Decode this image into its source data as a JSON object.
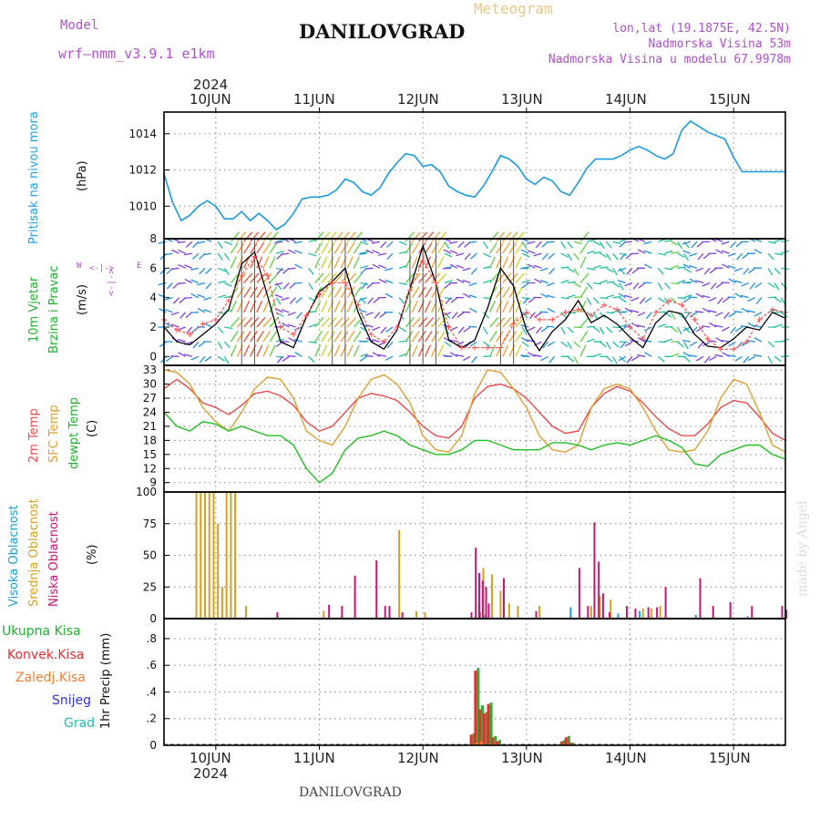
{
  "header": {
    "model_label": "Model",
    "model_name": "wrf—nmm_v3.9.1  e1km",
    "station": "DANILOVGRAD",
    "product": "Meteogram",
    "lonlat": "lon,lat (19.1875E, 42.5N)",
    "elevation": "Nadmorska Visina 53m",
    "model_elevation": "Nadmorska Visina u modelu 67.9978m"
  },
  "footer": {
    "station": "DANILOVGRAD",
    "credit": "made by Angel"
  },
  "time_axis": {
    "year": "2024",
    "days": [
      "10JUN",
      "11JUN",
      "12JUN",
      "13JUN",
      "14JUN",
      "15JUN"
    ],
    "range_hours": [
      -12,
      132
    ]
  },
  "colors": {
    "pressure": "#1a9be0",
    "t2m": "#e84c4c",
    "sfc": "#e0a030",
    "dew": "#22c022",
    "cloud_high": "#1aa0d8",
    "cloud_mid": "#d8a020",
    "cloud_low": "#c0187a",
    "precip_total": "#33aa33",
    "precip_conv": "#e03030",
    "precip_strat": "#f08030",
    "precip_snow": "#3333dd",
    "precip_hail": "#22bbbb"
  },
  "labels": {
    "pressure": [
      "Pritisak na nivou mora",
      "(hPa)"
    ],
    "wind": [
      "10m Vjetar",
      "Brzina i Pravac",
      "(m/s)"
    ],
    "compass": {
      "n": "N",
      "s": "S",
      "e": "E",
      "w": "W",
      "arrows": "<-|->"
    },
    "temp": [
      "2m Temp",
      "SFC Temp",
      "dewpt Temp",
      "(C)"
    ],
    "cloud": [
      "Visoka Oblacnost",
      "Srednja Oblacnost",
      "Niska Oblacnost",
      "(%)"
    ],
    "precip_legend": [
      "Ukupna Kisa",
      "Konvek.Kisa",
      "Zaledj.Kisa",
      "Snijeg",
      "Grad"
    ],
    "precip_axis": "1hr Precip (mm)"
  },
  "chart_data": [
    {
      "type": "line",
      "name": "pressure",
      "ylim": [
        1008.2,
        1015.2
      ],
      "yticks": [
        1010,
        1012,
        1014
      ],
      "x": [
        -12,
        -10,
        -8,
        -6,
        -4,
        -2,
        0,
        2,
        4,
        6,
        8,
        10,
        12,
        14,
        16,
        18,
        20,
        22,
        24,
        26,
        28,
        30,
        32,
        34,
        36,
        38,
        40,
        42,
        44,
        46,
        48,
        50,
        52,
        54,
        56,
        58,
        60,
        62,
        64,
        66,
        68,
        70,
        72,
        74,
        76,
        78,
        80,
        82,
        84,
        86,
        88,
        90,
        92,
        94,
        96,
        98,
        100,
        102,
        104,
        106,
        108,
        110,
        112,
        114,
        116,
        118,
        120,
        122,
        124,
        126,
        128,
        130,
        132
      ],
      "values": [
        1011.8,
        1010.2,
        1009.2,
        1009.5,
        1010.0,
        1010.3,
        1010.0,
        1009.3,
        1009.3,
        1009.7,
        1009.2,
        1009.6,
        1009.2,
        1008.7,
        1009.0,
        1009.6,
        1010.4,
        1010.5,
        1010.5,
        1010.6,
        1010.9,
        1011.5,
        1011.3,
        1010.8,
        1010.6,
        1011.0,
        1011.8,
        1012.4,
        1012.9,
        1012.8,
        1012.2,
        1012.3,
        1011.9,
        1011.1,
        1010.8,
        1010.6,
        1010.5,
        1011.1,
        1011.9,
        1012.8,
        1012.6,
        1012.2,
        1011.5,
        1011.2,
        1011.6,
        1011.4,
        1010.8,
        1010.6,
        1011.3,
        1012.1,
        1012.6,
        1012.6,
        1012.6,
        1012.8,
        1013.1,
        1013.3,
        1013.1,
        1012.8,
        1012.6,
        1012.9,
        1014.2,
        1014.7,
        1014.4,
        1014.1,
        1013.9,
        1013.7,
        1012.7,
        1011.9,
        1011.9,
        1011.9,
        1011.9,
        1011.9,
        1011.9
      ]
    },
    {
      "type": "line",
      "name": "wind",
      "ylim": [
        -0.6,
        8.0
      ],
      "yticks": [
        0,
        2,
        4,
        6,
        8
      ],
      "x": [
        -12,
        -9,
        -6,
        -3,
        0,
        3,
        6,
        9,
        12,
        15,
        18,
        21,
        24,
        27,
        30,
        33,
        36,
        39,
        42,
        45,
        48,
        51,
        54,
        57,
        60,
        63,
        66,
        69,
        72,
        75,
        78,
        81,
        84,
        87,
        90,
        93,
        96,
        99,
        102,
        105,
        108,
        111,
        114,
        117,
        120,
        123,
        126,
        129,
        132
      ],
      "values": [
        2.0,
        1.0,
        0.8,
        1.5,
        2.2,
        3.2,
        6.3,
        7.1,
        4.1,
        1.0,
        0.6,
        2.7,
        4.4,
        5.1,
        6.0,
        3.0,
        1.0,
        0.5,
        1.8,
        4.6,
        7.5,
        5.0,
        1.1,
        0.6,
        1.1,
        3.3,
        6.0,
        4.8,
        1.8,
        0.4,
        1.7,
        2.5,
        3.8,
        2.3,
        2.8,
        2.2,
        1.3,
        0.6,
        2.3,
        3.1,
        2.9,
        1.5,
        0.7,
        0.6,
        1.2,
        2.0,
        1.8,
        3.0,
        2.6
      ],
      "gust": [
        2.5,
        1.8,
        1.5,
        2.2,
        2.5,
        3.8,
        5.5,
        6.8,
        5.5,
        2.0,
        1.5,
        2.8,
        4.2,
        5.0,
        5.0,
        3.5,
        1.5,
        1.0,
        2.0,
        4.5,
        6.5,
        5.0,
        2.0,
        0.6,
        0.6,
        0.6,
        0.6,
        2.2,
        3.0,
        2.5,
        2.5,
        3.0,
        3.2,
        2.8,
        3.5,
        3.2,
        2.0,
        1.2,
        3.0,
        3.8,
        3.5,
        2.5,
        1.2,
        0.5,
        0.5,
        1.0,
        2.5,
        3.2,
        3.0
      ]
    },
    {
      "type": "line",
      "name": "temperature",
      "ylim": [
        7.0,
        34.0
      ],
      "yticks": [
        9,
        12,
        15,
        18,
        21,
        24,
        27,
        30,
        33
      ],
      "x": [
        -12,
        -9,
        -6,
        -3,
        0,
        3,
        6,
        9,
        12,
        15,
        18,
        21,
        24,
        27,
        30,
        33,
        36,
        39,
        42,
        45,
        48,
        51,
        54,
        57,
        60,
        63,
        66,
        69,
        72,
        75,
        78,
        81,
        84,
        87,
        90,
        93,
        96,
        99,
        102,
        105,
        108,
        111,
        114,
        117,
        120,
        123,
        126,
        129,
        132
      ],
      "series": [
        {
          "name": "2m Temp",
          "values": [
            29,
            31,
            29,
            26,
            25,
            23.5,
            25.5,
            28,
            28.5,
            27.5,
            25.5,
            22,
            20,
            21,
            24,
            27,
            28,
            27.5,
            26.5,
            24,
            21,
            19,
            18.5,
            21,
            27,
            29.5,
            30,
            29,
            27,
            24,
            21,
            19.5,
            20,
            25,
            28,
            29.5,
            28.5,
            26,
            23,
            20.5,
            19,
            19,
            21.5,
            25,
            26.5,
            26,
            23,
            19.5,
            18
          ]
        },
        {
          "name": "SFC Temp",
          "values": [
            33,
            32.5,
            30,
            25,
            22,
            20,
            24,
            29,
            31.5,
            31,
            27,
            20,
            18,
            17,
            21,
            27,
            31,
            32,
            30,
            26,
            19,
            16,
            15.5,
            19,
            28,
            33,
            32.5,
            29,
            25,
            19,
            16,
            15.5,
            17,
            25,
            29,
            30,
            29,
            25,
            20,
            16,
            15.5,
            16,
            20,
            27,
            31,
            30,
            24,
            17,
            15.5
          ]
        },
        {
          "name": "dewpt Temp",
          "values": [
            24,
            21,
            20,
            22,
            21.5,
            20,
            21,
            20,
            19,
            19,
            17,
            12,
            9,
            11,
            16,
            18.5,
            19,
            20,
            19,
            17,
            16,
            15,
            15,
            16,
            18,
            18,
            17,
            16,
            16,
            16,
            17.5,
            17.5,
            17,
            16,
            17,
            17.5,
            17,
            18,
            19,
            18,
            16.5,
            13,
            12.5,
            15,
            16,
            17,
            17,
            15,
            14
          ]
        }
      ]
    },
    {
      "type": "bar",
      "name": "cloud",
      "ylim": [
        0,
        100
      ],
      "yticks": [
        0,
        25,
        50,
        75,
        100
      ],
      "series": [
        {
          "name": "Visoka Oblacnost",
          "points": [
            [
              61.5,
              5
            ],
            [
              62.5,
              3
            ],
            [
              63.5,
              2
            ],
            [
              82.5,
              9
            ],
            [
              93.5,
              4
            ],
            [
              98.5,
              6
            ],
            [
              111.5,
              3
            ],
            [
              123.5,
              2
            ]
          ]
        },
        {
          "name": "Srednja Oblacnost",
          "points": [
            [
              -4.5,
              100
            ],
            [
              -3.5,
              100
            ],
            [
              -2.5,
              100
            ],
            [
              -1.5,
              100
            ],
            [
              -0.5,
              100
            ],
            [
              0.5,
              75
            ],
            [
              1.5,
              25
            ],
            [
              2.5,
              100
            ],
            [
              3.5,
              100
            ],
            [
              4.5,
              100
            ],
            [
              7,
              10
            ],
            [
              25,
              6
            ],
            [
              42.5,
              70
            ],
            [
              46.5,
              6
            ],
            [
              48.5,
              5
            ],
            [
              61,
              13
            ],
            [
              62,
              40
            ],
            [
              64,
              35
            ],
            [
              66,
              22
            ],
            [
              68,
              12
            ],
            [
              70,
              10
            ],
            [
              75,
              10
            ],
            [
              87,
              10
            ],
            [
              89,
              18
            ],
            [
              91.5,
              15
            ],
            [
              99,
              8
            ],
            [
              101,
              8
            ],
            [
              103,
              10
            ]
          ]
        },
        {
          "name": "Niska Oblacnost",
          "points": [
            [
              14,
              5
            ],
            [
              26,
              11
            ],
            [
              29,
              10
            ],
            [
              32,
              34
            ],
            [
              37,
              46
            ],
            [
              39,
              10
            ],
            [
              40,
              10
            ],
            [
              43,
              5
            ],
            [
              59,
              5
            ],
            [
              60,
              56
            ],
            [
              60.8,
              36
            ],
            [
              61.6,
              30
            ],
            [
              62.4,
              25
            ],
            [
              63,
              12
            ],
            [
              66.5,
              32
            ],
            [
              74,
              6
            ],
            [
              84,
              40
            ],
            [
              86,
              10
            ],
            [
              87.5,
              76
            ],
            [
              88.5,
              45
            ],
            [
              89.5,
              20
            ],
            [
              91,
              5
            ],
            [
              95,
              10
            ],
            [
              97,
              8
            ],
            [
              100,
              9
            ],
            [
              102,
              9
            ],
            [
              104,
              25
            ],
            [
              112,
              32
            ],
            [
              115,
              10
            ],
            [
              119,
              13
            ],
            [
              124,
              10
            ],
            [
              131,
              10
            ],
            [
              132,
              7
            ]
          ]
        }
      ]
    },
    {
      "type": "bar",
      "name": "precipitation",
      "ylim": [
        0,
        0.95
      ],
      "yticks": [
        0,
        0.2,
        0.4,
        0.6,
        0.8
      ],
      "series": [
        {
          "name": "Ukupna Kisa",
          "points": [
            [
              59.5,
              0.09
            ],
            [
              60.5,
              0.58
            ],
            [
              61.5,
              0.3
            ],
            [
              62.5,
              0.25
            ],
            [
              63.5,
              0.32
            ],
            [
              64.5,
              0.07
            ],
            [
              65.5,
              0.04
            ],
            [
              79.5,
              0.01
            ],
            [
              80.5,
              0.04
            ],
            [
              81.5,
              0.07
            ],
            [
              82.5,
              0.02
            ]
          ]
        },
        {
          "name": "Konvek.Kisa",
          "points": [
            [
              59.5,
              0.08
            ],
            [
              60.5,
              0.56
            ],
            [
              61.5,
              0.27
            ],
            [
              62.5,
              0.24
            ],
            [
              63.5,
              0.31
            ],
            [
              64.5,
              0.06
            ],
            [
              65.5,
              0.03
            ],
            [
              80.5,
              0.03
            ],
            [
              81.5,
              0.06
            ],
            [
              82.5,
              0.02
            ]
          ]
        },
        {
          "name": "Zaledj.Kisa",
          "points": [
            [
              60.5,
              0.02
            ],
            [
              61.5,
              0.03
            ],
            [
              63.5,
              0.01
            ]
          ]
        },
        {
          "name": "Snijeg",
          "points": []
        },
        {
          "name": "Grad",
          "points": [
            [
              61.5,
              0.01
            ]
          ]
        }
      ]
    }
  ]
}
